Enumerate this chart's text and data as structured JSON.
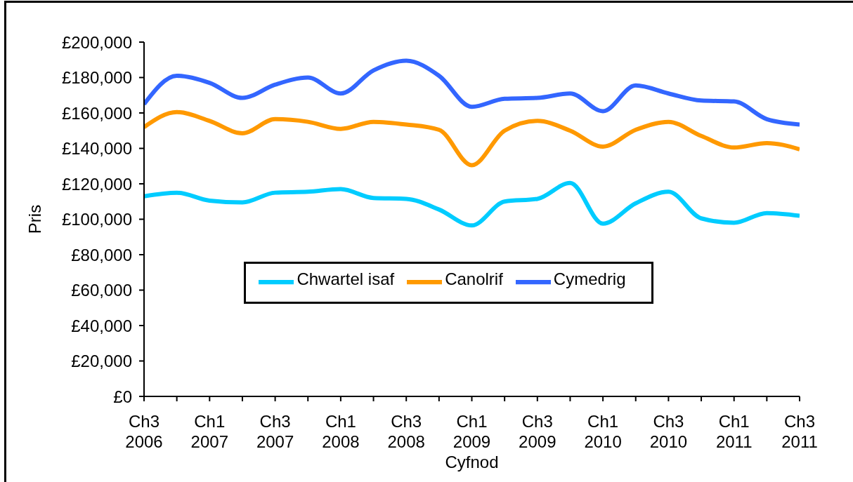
{
  "chart_data": {
    "type": "line",
    "xlabel": "Cyfnod",
    "ylabel": "Pris",
    "categories": [
      "Ch3 2006",
      null,
      "Ch1 2007",
      null,
      "Ch3 2007",
      null,
      "Ch1 2008",
      null,
      "Ch3 2008",
      null,
      "Ch1 2009",
      null,
      "Ch3 2009",
      null,
      "Ch1 2010",
      null,
      "Ch3 2010",
      null,
      "Ch1 2011",
      null,
      "Ch3 2011"
    ],
    "series": [
      {
        "name": "Chwartel isaf",
        "color": "#00ccff",
        "values": [
          113000,
          115000,
          110500,
          109500,
          115000,
          115500,
          117000,
          112000,
          111500,
          105500,
          96500,
          110000,
          111500,
          120500,
          97500,
          109000,
          115500,
          100500,
          98000,
          103500,
          102000
        ]
      },
      {
        "name": "Canolrif",
        "color": "#ff9900",
        "values": [
          152000,
          160500,
          155500,
          148500,
          156500,
          155000,
          151000,
          155000,
          153500,
          150500,
          130500,
          150000,
          155500,
          150000,
          141000,
          150500,
          155000,
          147000,
          140500,
          143000,
          139500
        ]
      },
      {
        "name": "Cymedrig",
        "color": "#3366ff",
        "values": [
          165000,
          181000,
          177000,
          168500,
          176000,
          180000,
          171000,
          184000,
          189500,
          181000,
          163500,
          168000,
          168500,
          171000,
          161000,
          175500,
          171000,
          167000,
          166500,
          156500,
          153500
        ]
      }
    ],
    "ylim": [
      0,
      200000
    ],
    "yticks": [
      {
        "value": 0,
        "label": "£0"
      },
      {
        "value": 20000,
        "label": "£20,000"
      },
      {
        "value": 40000,
        "label": "£40,000"
      },
      {
        "value": 60000,
        "label": "£60,000"
      },
      {
        "value": 80000,
        "label": "£80,000"
      },
      {
        "value": 100000,
        "label": "£100,000"
      },
      {
        "value": 120000,
        "label": "£120,000"
      },
      {
        "value": 140000,
        "label": "£140,000"
      },
      {
        "value": 160000,
        "label": "£160,000"
      },
      {
        "value": 180000,
        "label": "£180,000"
      },
      {
        "value": 200000,
        "label": "£200,000"
      }
    ],
    "legend": "bottom"
  }
}
